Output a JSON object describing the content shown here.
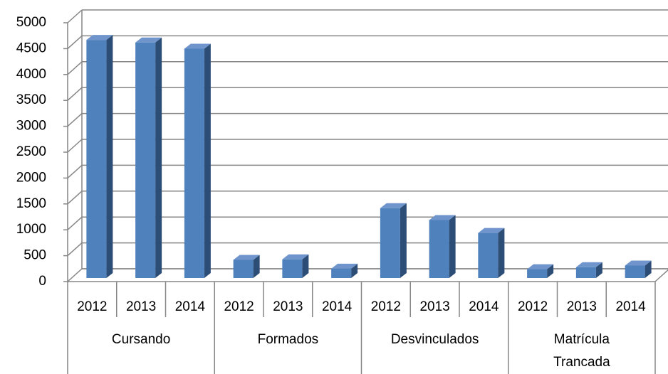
{
  "chart_data": {
    "type": "bar3d",
    "categories": [
      "2012",
      "2013",
      "2014",
      "2012",
      "2013",
      "2014",
      "2012",
      "2013",
      "2014",
      "2012",
      "2013",
      "2014"
    ],
    "groups": [
      "Cursando",
      "Formados",
      "Desvinculados",
      "Matrícula Trancada"
    ],
    "values": [
      4600,
      4550,
      4430,
      350,
      360,
      180,
      1350,
      1120,
      870,
      170,
      210,
      240
    ],
    "color": "#4f81bd",
    "ylim": [
      0,
      5000
    ],
    "yticks": [
      0,
      500,
      1000,
      1500,
      2000,
      2500,
      3000,
      3500,
      4000,
      4500,
      5000
    ],
    "grid": true
  }
}
